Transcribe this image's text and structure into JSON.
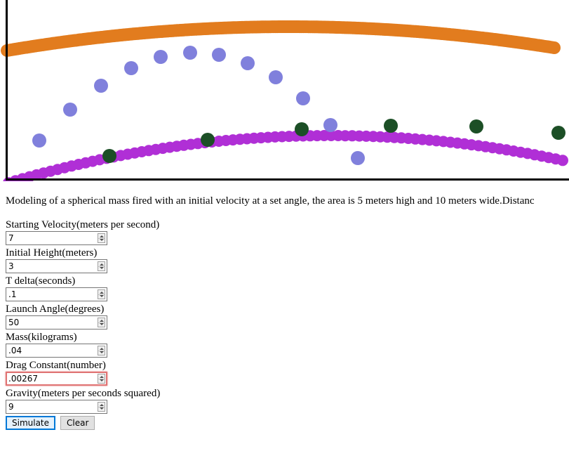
{
  "colors": {
    "canvas_border": "#000000",
    "trajectory_orange": "#e27c1e",
    "trajectory_purple": "#b02fd6",
    "dots_blue": "#8080dc",
    "dots_green": "#1c4f26",
    "focus_outline": "#e07474",
    "primary_button_border": "#0078d7"
  },
  "description": "Modeling of a spherical mass fired with an initial velocity at a set angle, the area is 5 meters high and 10 meters wide.Distanc",
  "fields": [
    {
      "label": "Starting Velocity(meters per second)",
      "value": "7"
    },
    {
      "label": "Initial Height(meters)",
      "value": "3"
    },
    {
      "label": "T delta(seconds)",
      "value": ".1"
    },
    {
      "label": "Launch Angle(degrees)",
      "value": "50"
    },
    {
      "label": "Mass(kilograms)",
      "value": ".04"
    },
    {
      "label": "Drag Constant(number)",
      "value": ".00267",
      "focused": true
    },
    {
      "label": "Gravity(meters per seconds squared)",
      "value": "9"
    }
  ],
  "buttons": {
    "simulate": "Simulate",
    "clear": "Clear"
  },
  "icons": {
    "spinner_up": "spin-up-icon",
    "spinner_down": "spin-down-icon"
  }
}
